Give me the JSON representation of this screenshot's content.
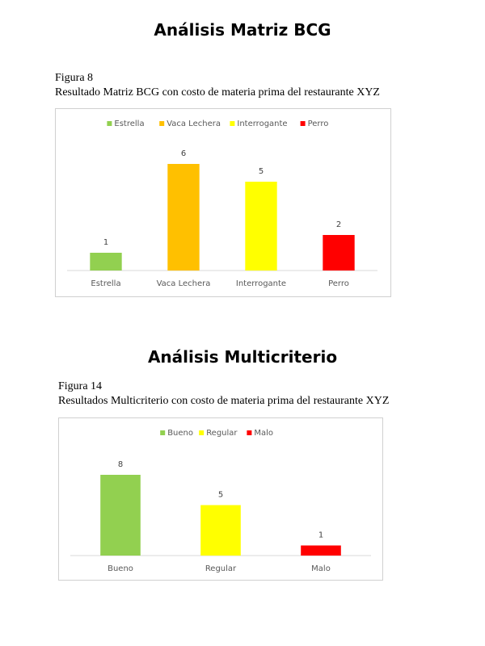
{
  "section1": {
    "title": "Análisis Matriz BCG",
    "figure_number": "Figura 8",
    "figure_caption": "Resultado Matriz BCG con costo de materia prima del restaurante XYZ"
  },
  "section2": {
    "title": "Análisis Multicriterio",
    "figure_number": "Figura 14",
    "figure_caption": "Resultados Multicriterio con costo de materia prima del restaurante XYZ"
  },
  "chart_data": [
    {
      "type": "bar",
      "categories": [
        "Estrella",
        "Vaca Lechera",
        "Interrogante",
        "Perro"
      ],
      "values": [
        1,
        6,
        5,
        2
      ],
      "colors": [
        "#92d050",
        "#ffc000",
        "#ffff00",
        "#ff0000"
      ],
      "legend": [
        "Estrella",
        "Vaca Lechera",
        "Interrogante",
        "Perro"
      ],
      "legend_position": "top",
      "ylim": [
        0,
        6
      ],
      "grid": false,
      "data_labels": true
    },
    {
      "type": "bar",
      "categories": [
        "Bueno",
        "Regular",
        "Malo"
      ],
      "values": [
        8,
        5,
        1
      ],
      "colors": [
        "#92d050",
        "#ffff00",
        "#ff0000"
      ],
      "legend": [
        "Bueno",
        "Regular",
        "Malo"
      ],
      "legend_position": "top",
      "ylim": [
        0,
        8
      ],
      "grid": false,
      "data_labels": true
    }
  ]
}
